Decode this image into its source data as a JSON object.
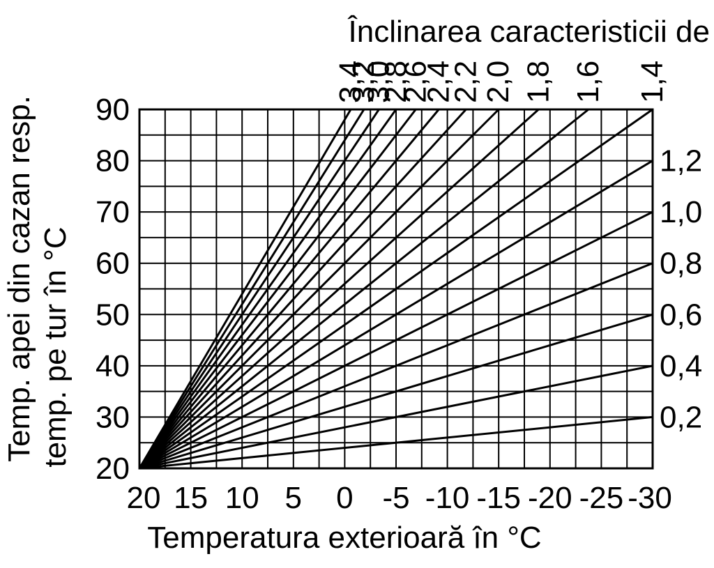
{
  "chart_data": {
    "type": "line",
    "title": "Înclinarea caracteristicii de",
    "xlabel": "Temperatura exterioară în °C",
    "ylabel_line1": "Temp. apei din cazan resp.",
    "ylabel_line2": "temp. pe tur în °C",
    "xlim": [
      20,
      -30
    ],
    "ylim": [
      20,
      90
    ],
    "x_ticks": [
      20,
      15,
      10,
      5,
      0,
      -5,
      -10,
      -15,
      -20,
      -25,
      -30
    ],
    "x_tick_labels": [
      "20",
      "15",
      "10",
      "5",
      "0",
      "-5",
      "-10",
      "-15",
      "-20",
      "-25",
      "-30"
    ],
    "y_ticks": [
      20,
      30,
      40,
      50,
      60,
      70,
      80,
      90
    ],
    "y_tick_labels": [
      "20",
      "30",
      "40",
      "50",
      "60",
      "70",
      "80",
      "90"
    ],
    "grid": true,
    "x_minor_step": 2.5,
    "y_minor_step": 5,
    "origin": [
      20,
      20
    ],
    "series": [
      {
        "name": "0,2",
        "slope": 0.2
      },
      {
        "name": "0,4",
        "slope": 0.4
      },
      {
        "name": "0,6",
        "slope": 0.6
      },
      {
        "name": "0,8",
        "slope": 0.8
      },
      {
        "name": "1,0",
        "slope": 1.0
      },
      {
        "name": "1,2",
        "slope": 1.2
      },
      {
        "name": "1,4",
        "slope": 1.4
      },
      {
        "name": "1,6",
        "slope": 1.6
      },
      {
        "name": "1,8",
        "slope": 1.8
      },
      {
        "name": "2,0",
        "slope": 2.0
      },
      {
        "name": "2,2",
        "slope": 2.2
      },
      {
        "name": "2,4",
        "slope": 2.4
      },
      {
        "name": "2,6",
        "slope": 2.6
      },
      {
        "name": "2,8",
        "slope": 2.8
      },
      {
        "name": "3,0",
        "slope": 3.0
      },
      {
        "name": "3,2",
        "slope": 3.2
      },
      {
        "name": "3,4",
        "slope": 3.4
      }
    ]
  }
}
